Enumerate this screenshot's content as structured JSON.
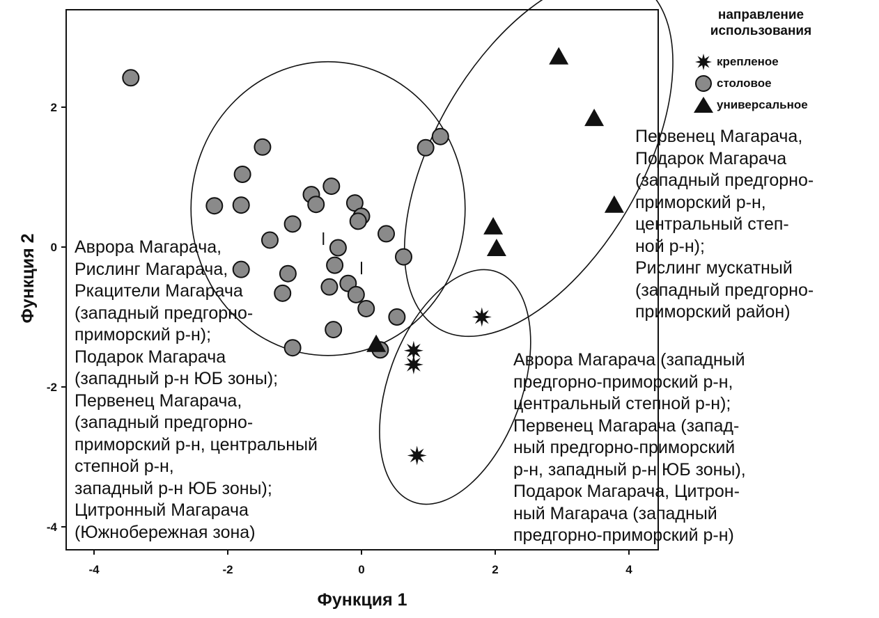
{
  "chart_data": {
    "type": "scatter",
    "xlabel": "Функция 1",
    "ylabel": "Функция 2",
    "xlim": [
      -4.5,
      4.4
    ],
    "ylim": [
      -4.35,
      3.4
    ],
    "x_ticks": [
      -4,
      -2,
      0,
      2,
      4
    ],
    "x_tick_labels": [
      "-4",
      "-2",
      "0",
      "2",
      "4"
    ],
    "y_ticks": [
      -4,
      -2,
      0,
      2
    ],
    "y_tick_labels": [
      "-4",
      "-2",
      "0",
      "2"
    ],
    "grid": false,
    "legend_title": "направление использования",
    "legend_position": "top-right",
    "series": [
      {
        "name": "крепленое",
        "marker": "star",
        "points": [
          [
            1.8,
            -1.0
          ],
          [
            0.78,
            -1.48
          ],
          [
            0.78,
            -1.68
          ],
          [
            0.83,
            -2.98
          ]
        ]
      },
      {
        "name": "столовое",
        "marker": "circle",
        "points": [
          [
            -3.45,
            2.42
          ],
          [
            -1.48,
            1.43
          ],
          [
            -1.78,
            1.04
          ],
          [
            -2.2,
            0.59
          ],
          [
            -1.8,
            0.6
          ],
          [
            -0.75,
            0.75
          ],
          [
            -0.68,
            0.61
          ],
          [
            -0.45,
            0.87
          ],
          [
            -1.03,
            0.33
          ],
          [
            -1.37,
            0.1
          ],
          [
            -0.35,
            -0.01
          ],
          [
            -0.4,
            -0.26
          ],
          [
            -0.1,
            0.63
          ],
          [
            0.0,
            0.44
          ],
          [
            -0.05,
            0.37
          ],
          [
            0.37,
            0.19
          ],
          [
            0.63,
            -0.14
          ],
          [
            -1.8,
            -0.32
          ],
          [
            -1.1,
            -0.38
          ],
          [
            -1.18,
            -0.66
          ],
          [
            -0.48,
            -0.57
          ],
          [
            -0.2,
            -0.52
          ],
          [
            -0.08,
            -0.68
          ],
          [
            0.07,
            -0.88
          ],
          [
            0.53,
            -1.0
          ],
          [
            -0.42,
            -1.18
          ],
          [
            -1.03,
            -1.44
          ],
          [
            0.96,
            1.42
          ],
          [
            1.18,
            1.58
          ],
          [
            0.28,
            -1.47
          ]
        ]
      },
      {
        "name": "универсальное",
        "marker": "triangle",
        "points": [
          [
            2.95,
            2.72
          ],
          [
            3.48,
            1.84
          ],
          [
            3.78,
            0.6
          ],
          [
            1.97,
            0.29
          ],
          [
            2.02,
            -0.02
          ],
          [
            0.22,
            -1.39
          ]
        ]
      }
    ],
    "minor_marks": [
      [
        -0.57,
        0.12
      ],
      [
        0.0,
        -0.3
      ]
    ],
    "ellipses": [
      {
        "cx": -0.5,
        "cy": 0.55,
        "rx": 2.05,
        "ry": 2.1,
        "angle_deg": 0
      },
      {
        "cx": 2.65,
        "cy": 1.3,
        "rx": 1.55,
        "ry": 2.85,
        "angle_deg": 30
      },
      {
        "cx": 1.4,
        "cy": -2.0,
        "rx": 1.0,
        "ry": 1.75,
        "angle_deg": 20
      }
    ],
    "annotations": [
      "Первенец Магарача,\nПодарок Магарача\n(западный предгорно-\nприморский р-н,\nцентральный степ-\nной р-н);\nРислинг мускатный\n(западный предгорно-\nприморский район)",
      "Аврора Магарача,\nРислинг Магарача,\nРкацители Магарача\n(западный предгорно-\nприморский р-н);\nПодарок Магарача\n(западный р-н ЮБ зоны);\nПервенец Магарача,\n(западный предгорно-\nприморский р-н, центральный\nстепной р-н,\nзападный р-н ЮБ зоны);\nЦитронный Магарача\n(Южнобережная зона)",
      "Аврора Магарача (западный\nпредгорно-приморский р-н,\nцентральный степной р-н);\nПервенец Магарача (запад-\nный предгорно-приморский\nр-н, западный р-н ЮБ зоны),\nПодарок Магарача, Цитрон-\nный Магарача (западный\nпредгорно-приморский р-н)"
    ]
  }
}
